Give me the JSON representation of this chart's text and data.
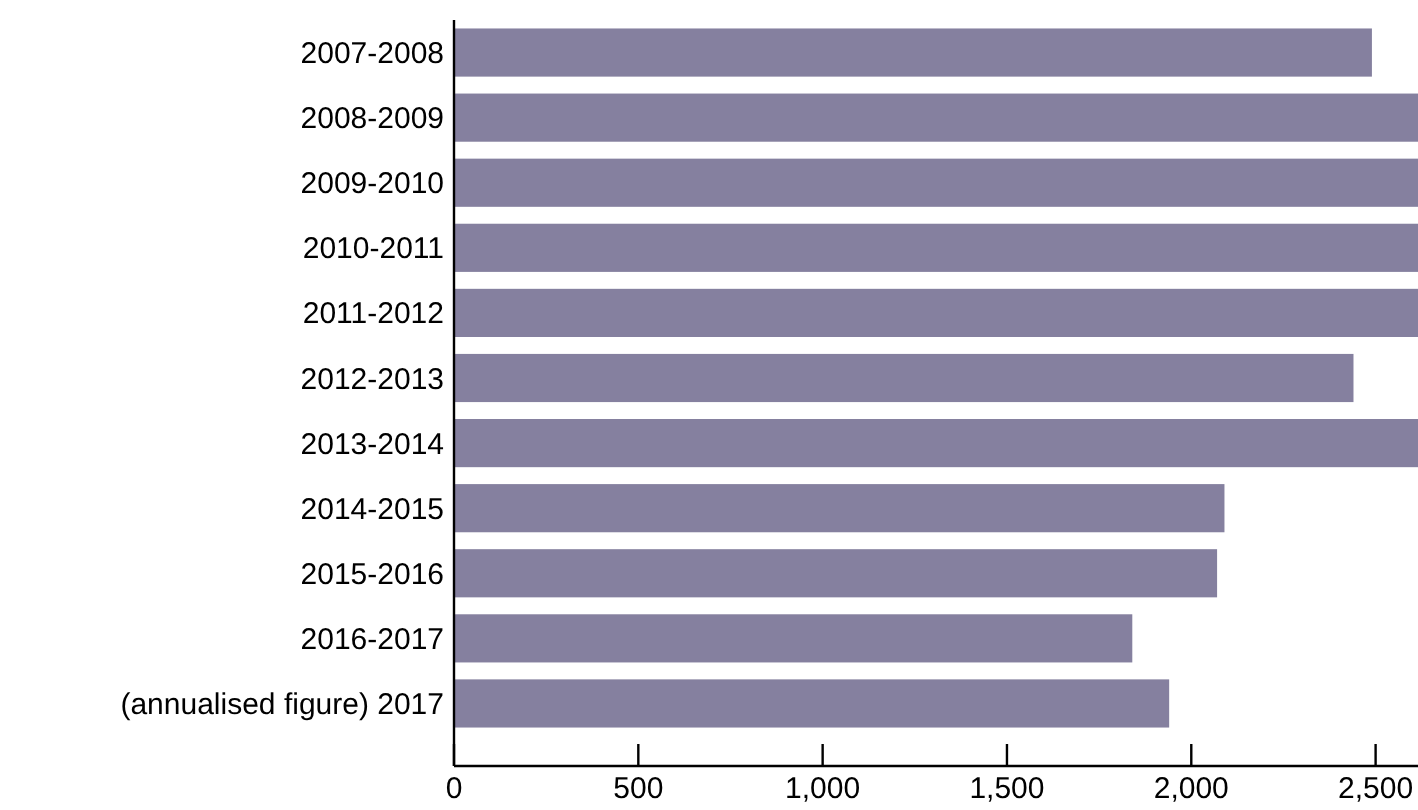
{
  "chart_data": {
    "type": "bar",
    "orientation": "horizontal",
    "categories": [
      "2007-2008",
      "2008-2009",
      "2009-2010",
      "2010-2011",
      "2011-2012",
      "2012-2013",
      "2013-2014",
      "2014-2015",
      "2015-2016",
      "2016-2017",
      "(annualised figure) 2017"
    ],
    "values": [
      2490,
      2615,
      2615,
      2615,
      2615,
      2440,
      2615,
      2090,
      2070,
      1840,
      1940
    ],
    "color": "#85809f",
    "xlim": [
      0,
      2615
    ],
    "xticks": [
      0,
      500,
      {
        "value": 1000,
        "label": "1,000"
      },
      {
        "value": 1500,
        "label": "1,500"
      },
      {
        "value": 2000,
        "label": "2,000"
      },
      {
        "value": 2500,
        "label": "2,500"
      }
    ],
    "grid": false
  }
}
